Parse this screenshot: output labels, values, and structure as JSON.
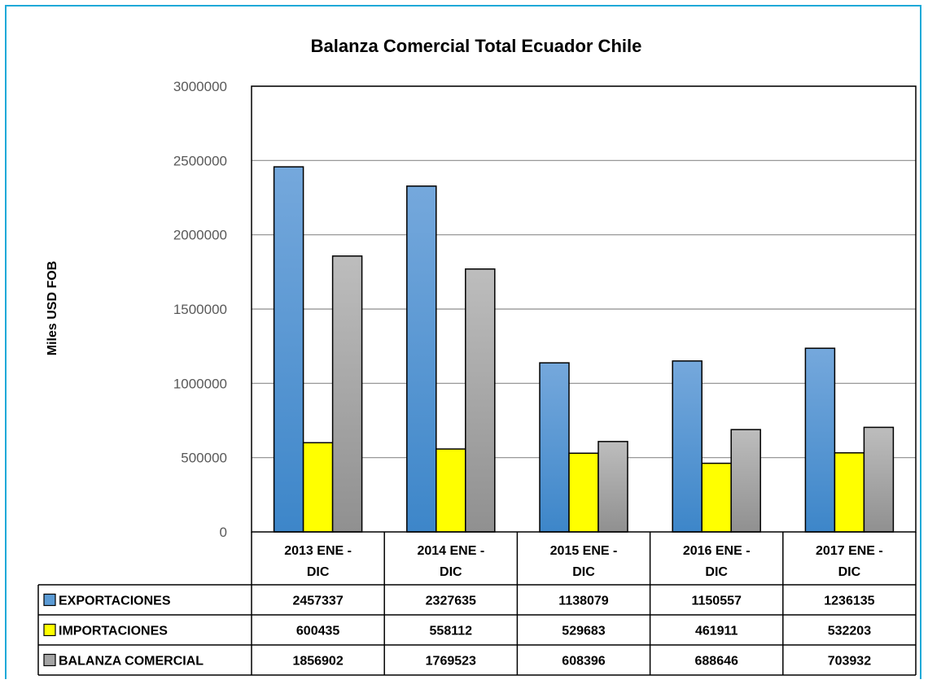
{
  "chart_data": {
    "type": "bar",
    "title": "Balanza Comercial Total Ecuador Chile",
    "ylabel": "Miles USD FOB",
    "xlabel": "",
    "ylim": [
      0,
      3000000
    ],
    "yticks": [
      "0",
      "500000",
      "1000000",
      "1500000",
      "2000000",
      "2500000",
      "3000000"
    ],
    "categories": [
      [
        "2013 ENE -",
        "DIC"
      ],
      [
        "2014 ENE -",
        "DIC"
      ],
      [
        "2015 ENE -",
        "DIC"
      ],
      [
        "2016 ENE -",
        "DIC"
      ],
      [
        "2017 ENE -",
        "DIC"
      ]
    ],
    "grid": true,
    "legend": "data-table",
    "series": [
      {
        "name": "EXPORTACIONES",
        "color": "#5b9bd5",
        "values": [
          2457337,
          2327635,
          1138079,
          1150557,
          1236135
        ],
        "labels": [
          "2457337",
          "2327635",
          "1138079",
          "1150557",
          "1236135"
        ]
      },
      {
        "name": "IMPORTACIONES",
        "color": "#ffff00",
        "values": [
          600435,
          558112,
          529683,
          461911,
          532203
        ],
        "labels": [
          "600435",
          "558112",
          "529683",
          "461911",
          "532203"
        ]
      },
      {
        "name": "BALANZA COMERCIAL",
        "color": "#a5a5a5",
        "values": [
          1856902,
          1769523,
          608396,
          688646,
          703932
        ],
        "labels": [
          "1856902",
          "1769523",
          "608396",
          "688646",
          "703932"
        ]
      }
    ]
  }
}
